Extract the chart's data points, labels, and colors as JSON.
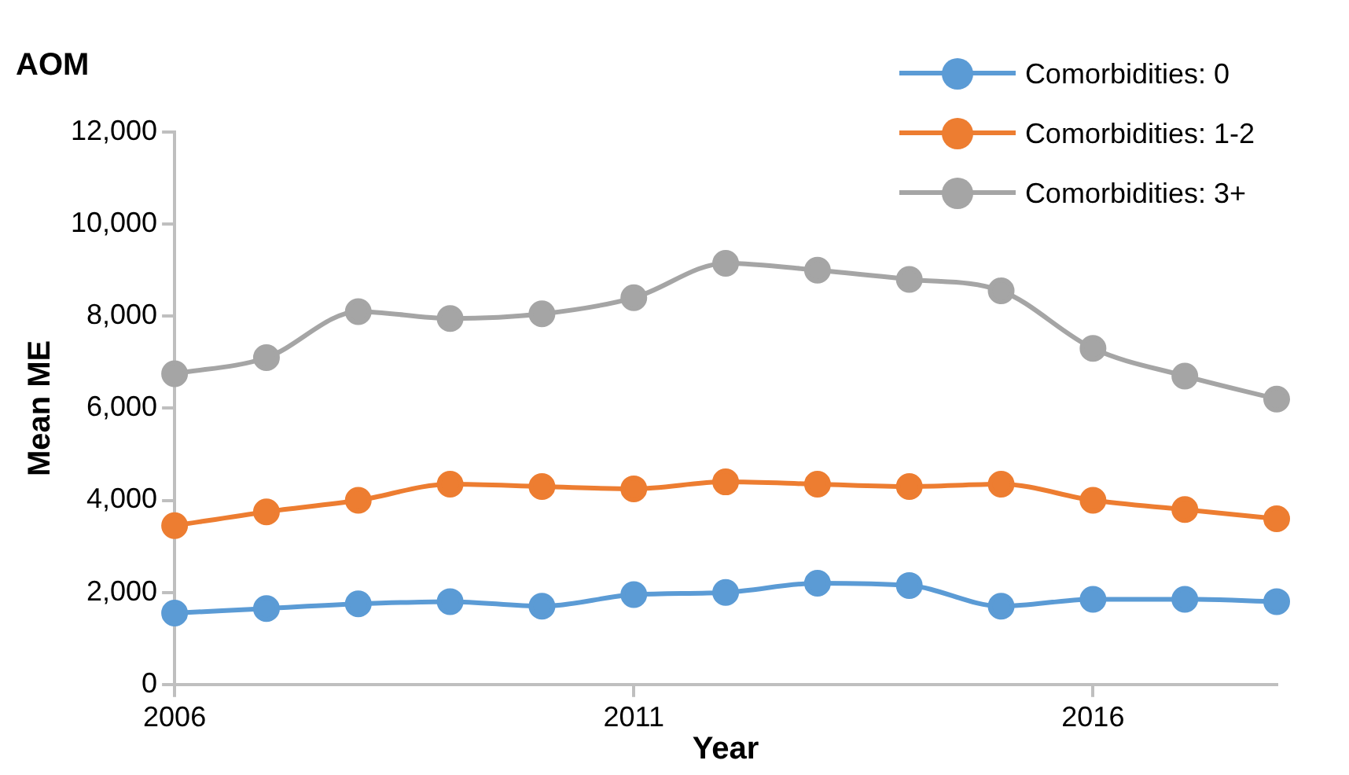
{
  "chart_data": {
    "type": "line",
    "title": "AOM",
    "xlabel": "Year",
    "ylabel": "Mean ME",
    "x": [
      2006,
      2007,
      2008,
      2009,
      2010,
      2011,
      2012,
      2013,
      2014,
      2015,
      2016,
      2017,
      2018
    ],
    "xlim": [
      2006,
      2018
    ],
    "xticks": [
      2006,
      2011,
      2016
    ],
    "ylim": [
      0,
      12000
    ],
    "yticks": [
      {
        "value": 0,
        "label": "0"
      },
      {
        "value": 2000,
        "label": "2,000"
      },
      {
        "value": 4000,
        "label": "4,000"
      },
      {
        "value": 6000,
        "label": "6,000"
      },
      {
        "value": 8000,
        "label": "8,000"
      },
      {
        "value": 10000,
        "label": "10,000"
      },
      {
        "value": 12000,
        "label": "12,000"
      }
    ],
    "series": [
      {
        "name": "Comorbidities: 0",
        "color": "#5b9bd5",
        "values": [
          1550,
          1650,
          1750,
          1800,
          1700,
          1950,
          2000,
          2200,
          2150,
          1700,
          1850,
          1850,
          1800
        ]
      },
      {
        "name": "Comorbidities: 1-2",
        "color": "#ed7d31",
        "values": [
          3450,
          3750,
          4000,
          4350,
          4300,
          4250,
          4400,
          4350,
          4300,
          4350,
          4000,
          3800,
          3600
        ]
      },
      {
        "name": "Comorbidities: 3+",
        "color": "#a5a5a5",
        "values": [
          6750,
          7100,
          8100,
          7950,
          8050,
          8400,
          9150,
          9000,
          8800,
          8550,
          7300,
          6700,
          6200
        ]
      }
    ],
    "legend": "top right",
    "grid": false,
    "marker": "circle",
    "line_style": "solid"
  }
}
